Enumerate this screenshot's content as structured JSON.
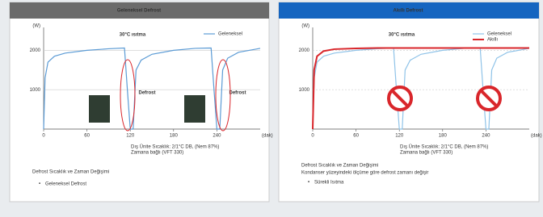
{
  "chart_data": [
    {
      "type": "line",
      "y_label": "(W)",
      "x_label": "(dak)",
      "x": [
        0,
        2,
        6,
        15,
        30,
        60,
        90,
        112,
        116,
        120,
        124,
        128,
        135,
        150,
        180,
        210,
        232,
        236,
        240,
        244,
        248,
        255,
        270,
        300
      ],
      "series": [
        {
          "name": "Geleneksel",
          "color": "#5b9bd5",
          "values": [
            0,
            1300,
            1700,
            1850,
            1930,
            2000,
            2040,
            2060,
            1000,
            0,
            0,
            1500,
            1750,
            1900,
            2000,
            2050,
            2060,
            1000,
            0,
            0,
            1500,
            1800,
            1950,
            2050
          ]
        }
      ],
      "xlim": [
        0,
        300
      ],
      "xticks": [
        0,
        60,
        120,
        180,
        240
      ],
      "ylim": [
        0,
        2500
      ],
      "yticks": [
        1000,
        2000
      ],
      "grid": true,
      "legend": "top-right",
      "annotations": [
        "30°C ısıtma",
        "Defrost",
        "Defrost"
      ]
    },
    {
      "type": "line",
      "y_label": "(W)",
      "x_label": "(dak)",
      "x": [
        0,
        2,
        6,
        15,
        30,
        60,
        90,
        112,
        116,
        120,
        124,
        128,
        135,
        150,
        180,
        210,
        232,
        236,
        240,
        244,
        248,
        255,
        270,
        300
      ],
      "series": [
        {
          "name": "Geleneksel",
          "color": "#8fc3e8",
          "values": [
            0,
            1300,
            1700,
            1850,
            1930,
            2000,
            2040,
            2060,
            1000,
            0,
            0,
            1500,
            1750,
            1900,
            2000,
            2050,
            2060,
            1000,
            0,
            0,
            1500,
            1800,
            1950,
            2050
          ]
        },
        {
          "name": "Akıllı",
          "color": "#d9262b",
          "values": [
            0,
            1500,
            1850,
            1980,
            2030,
            2050,
            2060,
            2060,
            2060,
            2060,
            2060,
            2060,
            2060,
            2060,
            2060,
            2060,
            2060,
            2060,
            2060,
            2060,
            2060,
            2060,
            2060,
            2060
          ]
        }
      ],
      "xlim": [
        0,
        300
      ],
      "xticks": [
        0,
        60,
        120,
        180,
        240
      ],
      "ylim": [
        0,
        2500
      ],
      "yticks": [
        1000,
        2000
      ],
      "grid": true,
      "legend": "top-right",
      "annotations": [
        "30°C ısıtma"
      ]
    }
  ],
  "panels": [
    {
      "header": "Geleneksel Defrost",
      "conditions": [
        "Dış Ünite Sıcaklık: 2/1°C DB, (Nem 87%)",
        "Zamana bağlı (VFT 330)"
      ],
      "caption": "Defrost Sıcaklık ve Zaman Değişimi",
      "note": null,
      "bullet": "Geleneksel Defrost"
    },
    {
      "header": "Akıllı Defrost",
      "conditions": [
        "Dış Ünite Sıcaklık: 2/1°C DB, (Nem 87%)",
        "Zamana bağlı (VFT 330)"
      ],
      "caption": "Defrost Sıcaklık ve Zaman Değişimi",
      "note": "Kondanser yüzeyindeki ölçüme göre defrost zamanı değişir",
      "bullet": "Sürekli Isıtma"
    }
  ]
}
